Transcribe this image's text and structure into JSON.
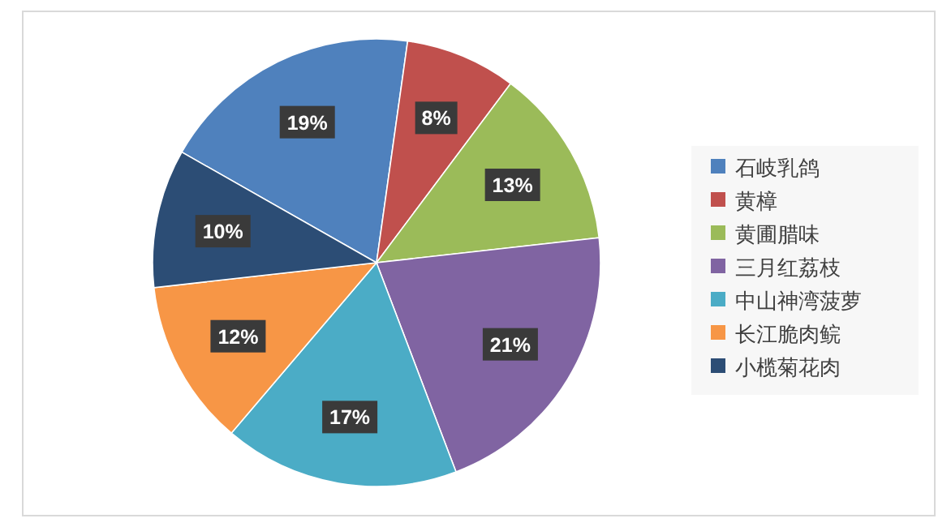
{
  "chart_data": {
    "type": "pie",
    "categories": [
      "石岐乳鸽",
      "黄樟",
      "黄圃腊味",
      "三月红荔枝",
      "中山神湾菠萝",
      "长江脆肉鲩",
      "小榄菊花肉"
    ],
    "values": [
      19,
      8,
      13,
      21,
      17,
      12,
      10
    ],
    "colors": [
      "#4f81bd",
      "#c0504d",
      "#9bbb59",
      "#8064a2",
      "#4bacc6",
      "#f79646",
      "#2c4d75"
    ],
    "value_labels": [
      "19%",
      "8%",
      "13%",
      "21%",
      "17%",
      "12%",
      "10%"
    ],
    "legend": "right"
  }
}
